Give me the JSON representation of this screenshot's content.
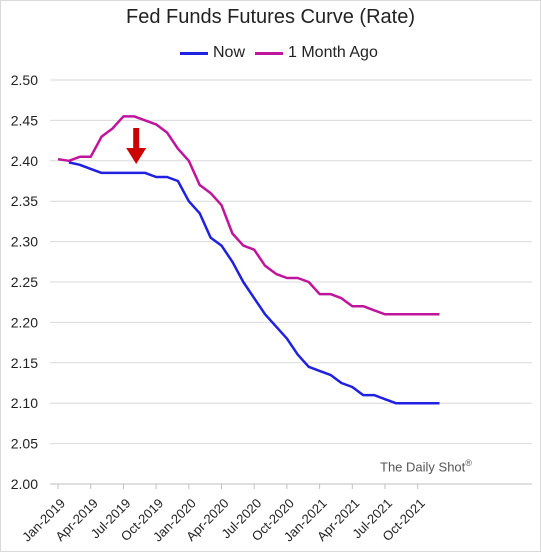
{
  "chart_data": {
    "type": "line",
    "title": "Fed Funds Futures Curve (Rate)",
    "xlabel": "",
    "ylabel": "",
    "ylim": [
      2.0,
      2.5
    ],
    "yticks": [
      "2.00",
      "2.05",
      "2.10",
      "2.15",
      "2.20",
      "2.25",
      "2.30",
      "2.35",
      "2.40",
      "2.45",
      "2.50"
    ],
    "grid": "horizontal",
    "legend_position": "top",
    "x_tick_labels": [
      "Jan-2019",
      "Apr-2019",
      "Jul-2019",
      "Oct-2019",
      "Jan-2020",
      "Apr-2020",
      "Jul-2020",
      "Oct-2020",
      "Jan-2021",
      "Apr-2021",
      "Jul-2021",
      "Oct-2021"
    ],
    "x": [
      "2019-01",
      "2019-02",
      "2019-03",
      "2019-04",
      "2019-05",
      "2019-06",
      "2019-07",
      "2019-08",
      "2019-09",
      "2019-10",
      "2019-11",
      "2019-12",
      "2020-01",
      "2020-02",
      "2020-03",
      "2020-04",
      "2020-05",
      "2020-06",
      "2020-07",
      "2020-08",
      "2020-09",
      "2020-10",
      "2020-11",
      "2020-12",
      "2021-01",
      "2021-02",
      "2021-03",
      "2021-04",
      "2021-05",
      "2021-06",
      "2021-07",
      "2021-08",
      "2021-09",
      "2021-10",
      "2021-11",
      "2021-12"
    ],
    "series": [
      {
        "name": "Now",
        "color": "#2020e0",
        "values": [
          null,
          2.398,
          2.395,
          2.39,
          2.385,
          2.385,
          2.385,
          2.385,
          2.385,
          2.38,
          2.38,
          2.375,
          2.35,
          2.335,
          2.305,
          2.295,
          2.275,
          2.25,
          2.23,
          2.21,
          2.195,
          2.18,
          2.16,
          2.145,
          2.14,
          2.135,
          2.125,
          2.12,
          2.11,
          2.11,
          2.105,
          2.1,
          2.1,
          2.1,
          2.1,
          2.1
        ]
      },
      {
        "name": "1 Month Ago",
        "color": "#c0149c",
        "values": [
          2.402,
          2.4,
          2.405,
          2.405,
          2.43,
          2.44,
          2.455,
          2.455,
          2.45,
          2.445,
          2.435,
          2.415,
          2.4,
          2.37,
          2.36,
          2.345,
          2.31,
          2.295,
          2.29,
          2.27,
          2.26,
          2.255,
          2.255,
          2.25,
          2.235,
          2.235,
          2.23,
          2.22,
          2.22,
          2.215,
          2.21,
          2.21,
          2.21,
          2.21,
          2.21,
          2.21
        ]
      }
    ],
    "annotation": {
      "type": "down-arrow",
      "color": "#cc0000",
      "at_x": "2019-09"
    },
    "source": "The Daily Shot",
    "source_mark": "®"
  }
}
